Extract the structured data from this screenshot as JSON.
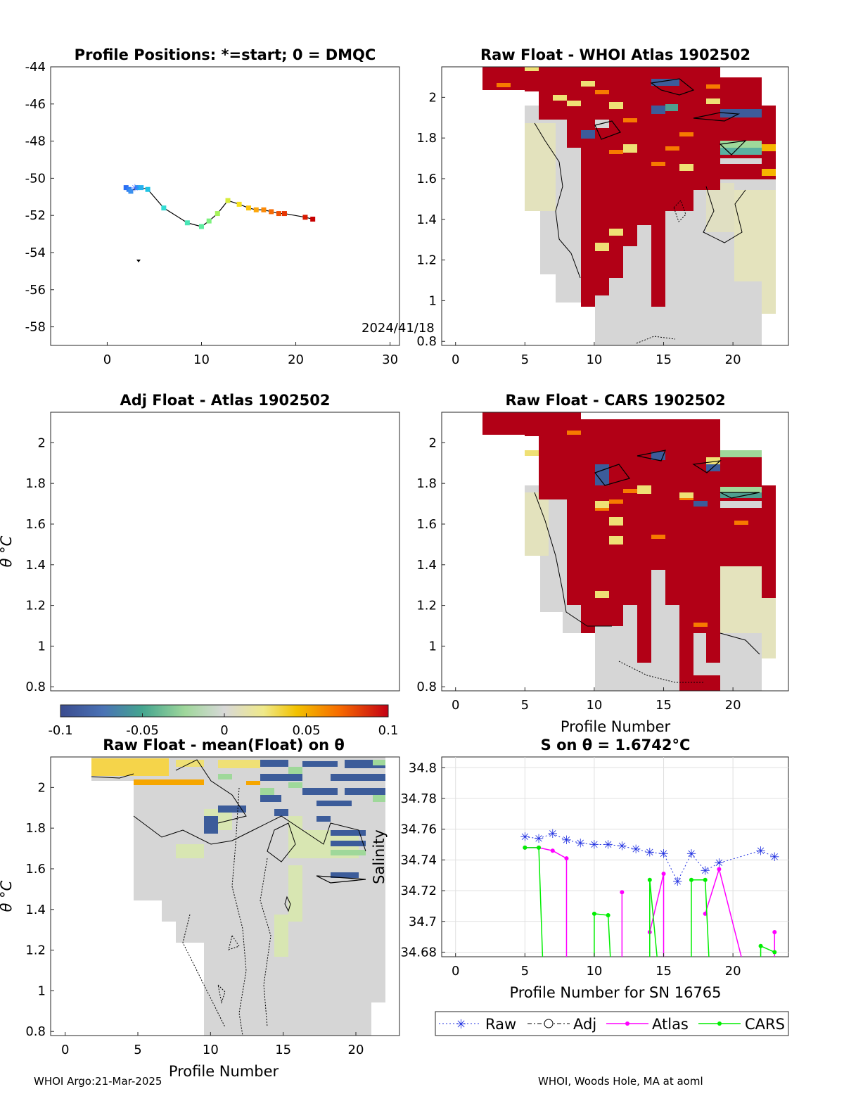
{
  "footer": {
    "left": "WHOI Argo:21-Mar-2025",
    "right": "WHOI, Woods Hole, MA at aoml"
  },
  "colors": {
    "red": "#b20016",
    "grey": "#d7d7d7",
    "beige": "#e4e3bc",
    "blue": "#3c5c9a",
    "green": "#9fd89a",
    "raw": "#2030e0",
    "atlas": "#ff00ff",
    "cars": "#00ee00"
  },
  "chart_data": [
    {
      "id": "positions",
      "type": "scatter",
      "title": "Profile Positions: *=start; 0 = DMQC",
      "xlim": [
        -6,
        31
      ],
      "ylim": [
        -59,
        -44
      ],
      "xticks": [
        "0",
        "10",
        "20",
        "30"
      ],
      "yticks": [
        "-44",
        "-46",
        "-48",
        "-50",
        "-52",
        "-54",
        "-56",
        "-58"
      ],
      "annotation": "2024/41/18",
      "points": [
        {
          "x": 2.0,
          "y": -50.5
        },
        {
          "x": 2.3,
          "y": -50.6
        },
        {
          "x": 2.5,
          "y": -50.7
        },
        {
          "x": 3.2,
          "y": -50.5
        },
        {
          "x": 3.6,
          "y": -50.5
        },
        {
          "x": 4.3,
          "y": -50.6
        },
        {
          "x": 6.0,
          "y": -51.6
        },
        {
          "x": 8.5,
          "y": -52.4
        },
        {
          "x": 10.0,
          "y": -52.6
        },
        {
          "x": 10.8,
          "y": -52.3
        },
        {
          "x": 11.7,
          "y": -51.9
        },
        {
          "x": 12.8,
          "y": -51.2
        },
        {
          "x": 14.0,
          "y": -51.4
        },
        {
          "x": 15.0,
          "y": -51.6
        },
        {
          "x": 15.8,
          "y": -51.7
        },
        {
          "x": 16.6,
          "y": -51.7
        },
        {
          "x": 17.4,
          "y": -51.8
        },
        {
          "x": 18.2,
          "y": -51.9
        },
        {
          "x": 18.8,
          "y": -51.9
        },
        {
          "x": 21.0,
          "y": -52.1
        },
        {
          "x": 21.8,
          "y": -52.2
        }
      ]
    },
    {
      "id": "raw_whoi",
      "type": "heatmap",
      "title": "Raw Float - WHOI Atlas  1902502",
      "xlim": [
        -1,
        24
      ],
      "ylim": [
        0.78,
        2.15
      ],
      "xticks": [
        "0",
        "5",
        "10",
        "15",
        "20"
      ],
      "yticks": [
        "2",
        "1.8",
        "1.6",
        "1.4",
        "1.2",
        "1",
        "0.8"
      ]
    },
    {
      "id": "adj_atlas",
      "type": "heatmap",
      "title": "Adj Float - Atlas  1902502",
      "ylabel": "θ °C",
      "xlim": [
        -1,
        24
      ],
      "ylim": [
        0.78,
        2.15
      ],
      "yticks": [
        "2",
        "1.8",
        "1.6",
        "1.4",
        "1.2",
        "1",
        "0.8"
      ]
    },
    {
      "id": "raw_cars",
      "type": "heatmap",
      "title": "Raw Float - CARS  1902502",
      "xlabel": "Profile Number",
      "xlim": [
        -1,
        24
      ],
      "ylim": [
        0.78,
        2.15
      ],
      "xticks": [
        "0",
        "5",
        "10",
        "15",
        "20"
      ],
      "yticks": [
        "2",
        "1.8",
        "1.6",
        "1.4",
        "1.2",
        "1",
        "0.8"
      ]
    },
    {
      "id": "colorbar",
      "type": "heatmap",
      "ticks": [
        "-0.1",
        "-0.05",
        "0",
        "0.05",
        "0.1"
      ],
      "range": [
        -0.1,
        0.1
      ]
    },
    {
      "id": "raw_mean",
      "type": "heatmap",
      "title": "Raw Float - mean(Float) on θ",
      "xlabel": "Profile Number",
      "ylabel": "θ °C",
      "xlim": [
        -1,
        23
      ],
      "ylim": [
        0.78,
        2.15
      ],
      "xticks": [
        "0",
        "5",
        "10",
        "15",
        "20"
      ],
      "yticks": [
        "2",
        "1.8",
        "1.6",
        "1.4",
        "1.2",
        "1",
        "0.8"
      ]
    },
    {
      "id": "s_on_theta",
      "type": "line",
      "title": "S on θ = 1.6742°C",
      "xlabel": "Profile Number for SN 16765",
      "ylabel": "Salinity",
      "xlim": [
        -1,
        24
      ],
      "ylim": [
        34.677,
        34.807
      ],
      "xticks": [
        "0",
        "5",
        "10",
        "15",
        "20"
      ],
      "yticks": [
        "34.8",
        "34.78",
        "34.76",
        "34.74",
        "34.72",
        "34.7",
        "34.68"
      ],
      "legend": [
        "Raw",
        "Adj",
        "Atlas",
        "CARS"
      ],
      "series": [
        {
          "name": "Raw",
          "x": [
            5,
            6,
            7,
            8,
            9,
            10,
            11,
            12,
            13,
            14,
            15,
            16,
            17,
            18,
            19,
            22,
            23
          ],
          "values": [
            34.755,
            34.754,
            34.757,
            34.753,
            34.751,
            34.75,
            34.75,
            34.749,
            34.747,
            34.745,
            34.744,
            34.726,
            34.744,
            34.733,
            34.738,
            34.746,
            34.742
          ]
        },
        {
          "name": "Atlas",
          "x": [
            5,
            6,
            7,
            8,
            8,
            null,
            12,
            12,
            null,
            14,
            15,
            15,
            null,
            18,
            19,
            20.8,
            null,
            23,
            23
          ],
          "values": [
            34.748,
            34.748,
            34.746,
            34.741,
            34.67,
            null,
            34.719,
            34.67,
            null,
            34.693,
            34.731,
            34.67,
            null,
            34.705,
            34.734,
            34.67,
            null,
            34.67,
            34.693
          ]
        },
        {
          "name": "CARS",
          "x": [
            5,
            6,
            6.3,
            null,
            10,
            10,
            11,
            11.2,
            null,
            14,
            14,
            14.6,
            null,
            17,
            17,
            18,
            18.3,
            null,
            22,
            22,
            23
          ],
          "values": [
            34.748,
            34.748,
            34.67,
            null,
            34.67,
            34.705,
            34.704,
            34.67,
            null,
            34.67,
            34.727,
            34.67,
            null,
            34.67,
            34.727,
            34.727,
            34.67,
            null,
            34.67,
            34.684,
            34.68
          ]
        }
      ]
    }
  ]
}
